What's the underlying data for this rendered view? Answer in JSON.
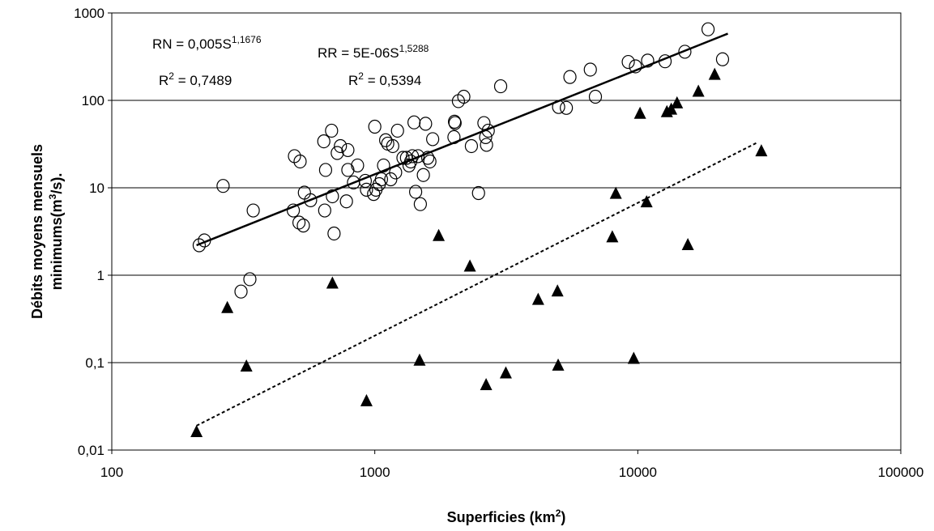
{
  "chart_data": {
    "type": "scatter",
    "xscale": "log",
    "yscale": "log",
    "xlim": [
      100,
      100000
    ],
    "ylim": [
      0.01,
      1000
    ],
    "grid": "horizontal",
    "xlabel": {
      "main": "Superficies (km",
      "sup": "2",
      "end": ")"
    },
    "ylabel": {
      "line1": "Débits moyens mensuels",
      "line2_main": "minimums(m",
      "line2_sup": "3",
      "line2_end": "/s)."
    },
    "xticks": [
      {
        "value": 100,
        "label": "100"
      },
      {
        "value": 1000,
        "label": "1000"
      },
      {
        "value": 10000,
        "label": "10000"
      },
      {
        "value": 100000,
        "label": "100000"
      }
    ],
    "yticks": [
      {
        "value": 0.01,
        "label": "0,01"
      },
      {
        "value": 0.1,
        "label": "0,1"
      },
      {
        "value": 1,
        "label": "1"
      },
      {
        "value": 10,
        "label": "10"
      },
      {
        "value": 100,
        "label": "100"
      },
      {
        "value": 1000,
        "label": "1000"
      }
    ],
    "annotations": {
      "rn_eq_main": "RN = 0,005S",
      "rn_eq_exp": "1,1676",
      "rn_r2_main": "R",
      "rn_r2_exp": "2",
      "rn_r2_val": " = 0,7489",
      "rr_eq_main": "RR = 5E-06S",
      "rr_eq_exp": "1,5288",
      "rr_r2_main": "R",
      "rr_r2_exp": "2",
      "rr_r2_val": " = 0,5394"
    },
    "series": [
      {
        "marker": "open-circle",
        "color": "#000000",
        "points": [
          [
            215,
            2.2
          ],
          [
            225,
            2.5
          ],
          [
            265,
            10.5
          ],
          [
            310,
            0.65
          ],
          [
            335,
            0.9
          ],
          [
            345,
            5.5
          ],
          [
            490,
            5.5
          ],
          [
            495,
            23
          ],
          [
            515,
            4
          ],
          [
            520,
            20
          ],
          [
            535,
            3.7
          ],
          [
            540,
            8.8
          ],
          [
            570,
            7.2
          ],
          [
            640,
            34
          ],
          [
            650,
            16
          ],
          [
            645,
            5.5
          ],
          [
            685,
            45
          ],
          [
            690,
            8
          ],
          [
            700,
            3
          ],
          [
            720,
            25
          ],
          [
            740,
            30
          ],
          [
            780,
            7
          ],
          [
            790,
            16
          ],
          [
            790,
            27
          ],
          [
            830,
            11.5
          ],
          [
            860,
            18
          ],
          [
            920,
            12
          ],
          [
            930,
            9.5
          ],
          [
            990,
            8.5
          ],
          [
            1000,
            50
          ],
          [
            1010,
            9.5
          ],
          [
            1040,
            11
          ],
          [
            1060,
            12.5
          ],
          [
            1080,
            18
          ],
          [
            1100,
            35
          ],
          [
            1120,
            32
          ],
          [
            1150,
            12.5
          ],
          [
            1170,
            30
          ],
          [
            1200,
            15
          ],
          [
            1220,
            45
          ],
          [
            1280,
            22
          ],
          [
            1320,
            22
          ],
          [
            1350,
            18
          ],
          [
            1370,
            20
          ],
          [
            1390,
            23
          ],
          [
            1410,
            56
          ],
          [
            1430,
            9
          ],
          [
            1460,
            23
          ],
          [
            1490,
            6.5
          ],
          [
            1530,
            14
          ],
          [
            1560,
            54
          ],
          [
            1590,
            22
          ],
          [
            1620,
            20
          ],
          [
            1660,
            36
          ],
          [
            2000,
            38
          ],
          [
            2010,
            57
          ],
          [
            2020,
            55
          ],
          [
            2080,
            98
          ],
          [
            2180,
            110
          ],
          [
            2330,
            30
          ],
          [
            2480,
            8.7
          ],
          [
            2600,
            55
          ],
          [
            2640,
            38
          ],
          [
            2660,
            31
          ],
          [
            2700,
            45
          ],
          [
            3010,
            145
          ],
          [
            5000,
            84
          ],
          [
            5350,
            82
          ],
          [
            5520,
            185
          ],
          [
            6600,
            225
          ],
          [
            6900,
            110
          ],
          [
            9200,
            275
          ],
          [
            9800,
            245
          ],
          [
            10900,
            285
          ],
          [
            12700,
            280
          ],
          [
            15100,
            360
          ],
          [
            18500,
            650
          ],
          [
            21000,
            295
          ]
        ],
        "trend": {
          "from": [
            210,
            2.2
          ],
          "to": [
            22000,
            580
          ]
        }
      },
      {
        "marker": "filled-triangle",
        "color": "#000000",
        "points": [
          [
            210,
            0.016
          ],
          [
            275,
            0.42
          ],
          [
            325,
            0.09
          ],
          [
            690,
            0.8
          ],
          [
            930,
            0.036
          ],
          [
            1480,
            0.105
          ],
          [
            1750,
            2.8
          ],
          [
            2300,
            1.25
          ],
          [
            2650,
            0.055
          ],
          [
            3150,
            0.075
          ],
          [
            4180,
            0.52
          ],
          [
            4950,
            0.65
          ],
          [
            4980,
            0.092
          ],
          [
            8000,
            2.7
          ],
          [
            8250,
            8.5
          ],
          [
            9650,
            0.11
          ],
          [
            10200,
            70
          ],
          [
            10800,
            6.8
          ],
          [
            12900,
            73
          ],
          [
            13400,
            78
          ],
          [
            14100,
            92
          ],
          [
            15500,
            2.2
          ],
          [
            17000,
            125
          ],
          [
            19600,
            195
          ],
          [
            29500,
            26
          ]
        ],
        "trend": {
          "from": [
            210,
            0.019
          ],
          "to": [
            28500,
            33
          ]
        }
      }
    ]
  }
}
